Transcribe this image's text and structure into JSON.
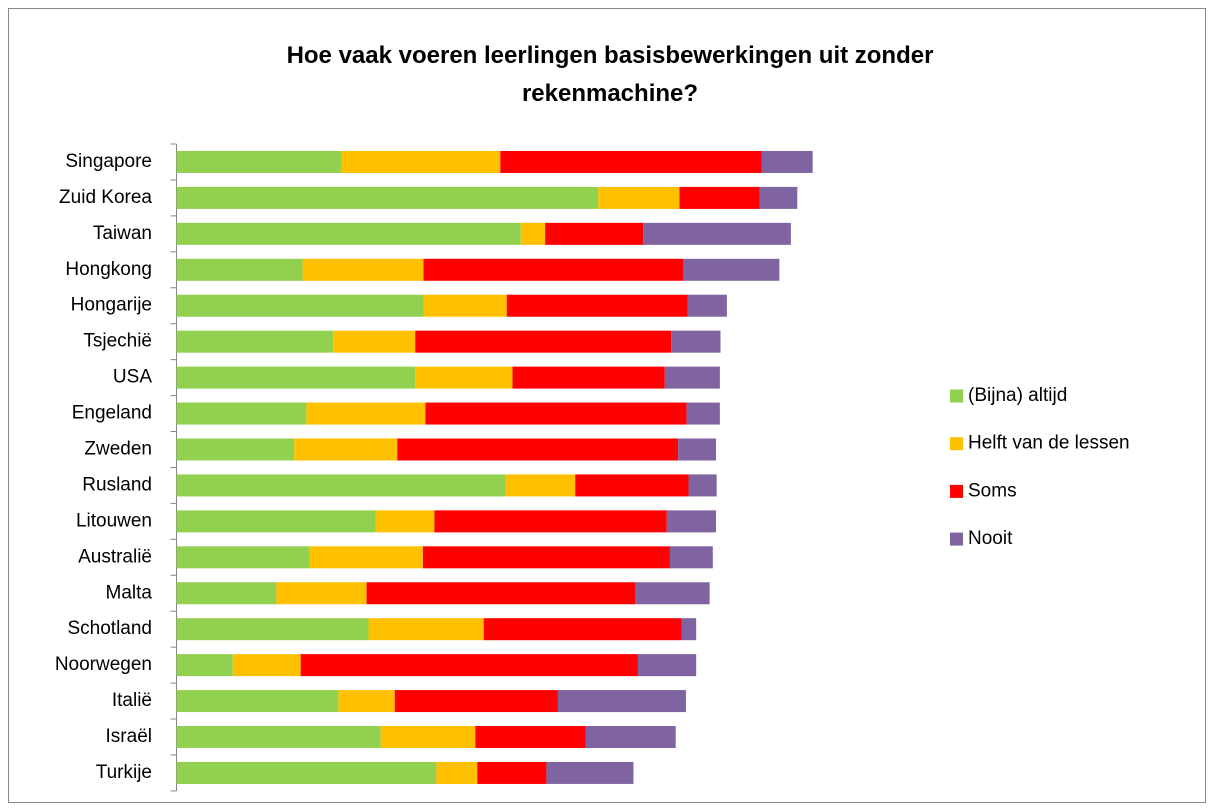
{
  "chart_data": {
    "type": "stacked-bar-horizontal",
    "title": "Hoe vaak voeren leerlingen basisbewerkingen uit zonder rekenmachine?",
    "categories": [
      "Singapore",
      "Zuid Korea",
      "Taiwan",
      "Hongkong",
      "Hongarije",
      "Tsjechië",
      "USA",
      "Engeland",
      "Zweden",
      "Rusland",
      "Litouwen",
      "Australië",
      "Malta",
      "Schotland",
      "Noorwegen",
      "Italië",
      "Israël",
      "Turkije"
    ],
    "series": [
      {
        "name": "(Bijna) altijd",
        "color": "#92d050",
        "values": [
          25.8,
          65.9,
          53.8,
          19.7,
          38.6,
          24.5,
          37.3,
          20.3,
          18.4,
          51.4,
          31.1,
          20.8,
          15.6,
          30.0,
          8.8,
          25.3,
          31.9,
          40.6
        ]
      },
      {
        "name": "Helft van de lessen",
        "color": "#ffc000",
        "values": [
          24.8,
          12.7,
          3.8,
          18.9,
          13.0,
          12.8,
          15.2,
          18.6,
          16.1,
          10.9,
          9.2,
          17.7,
          14.1,
          18.0,
          10.6,
          8.8,
          14.8,
          6.4
        ]
      },
      {
        "name": "Soms",
        "color": "#ff0000",
        "values": [
          40.8,
          12.5,
          15.3,
          40.6,
          28.3,
          40.0,
          23.8,
          40.8,
          43.9,
          17.7,
          36.3,
          38.6,
          42.0,
          30.9,
          52.7,
          25.5,
          17.2,
          10.8
        ]
      },
      {
        "name": "Nooit",
        "color": "#8064a2",
        "values": [
          8.0,
          5.9,
          23.1,
          15.0,
          6.1,
          7.7,
          8.6,
          5.2,
          5.9,
          4.4,
          7.7,
          6.7,
          11.6,
          2.3,
          9.1,
          20.0,
          14.1,
          13.6
        ]
      }
    ],
    "xlim": [
      0,
      100
    ],
    "legend": "right"
  }
}
